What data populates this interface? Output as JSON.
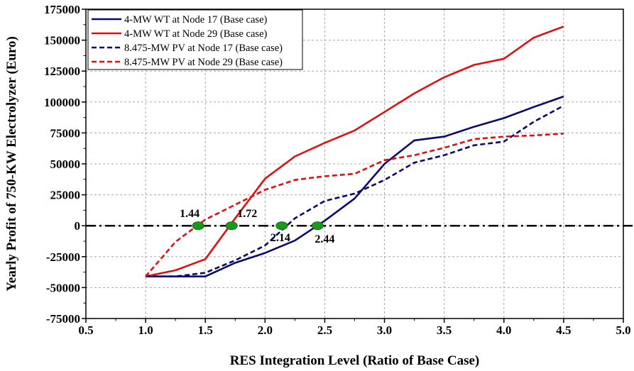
{
  "chart_data": {
    "type": "line",
    "title": "",
    "xlabel": "RES Integration Level (Ratio of Base Case)",
    "ylabel": "Yearly Profit of 750-KW Electrolyzer (Euro)",
    "xlim": [
      0.5,
      5.0
    ],
    "ylim": [
      -75000,
      175000
    ],
    "xticks": [
      "0.5",
      "1.0",
      "1.5",
      "2.0",
      "2.5",
      "3.0",
      "3.5",
      "4.0",
      "4.5",
      "5.0"
    ],
    "yticks": [
      "175000",
      "150000",
      "125000",
      "100000",
      "75000",
      "50000",
      "25000",
      "0",
      "-25000",
      "-50000",
      "-75000"
    ],
    "grid": true,
    "legend_position": "top-left",
    "series": [
      {
        "name": "4-MW WT at Node 17 (Base case)",
        "color": "#0a0a6e",
        "style": "solid",
        "x": [
          1.0,
          1.25,
          1.5,
          1.75,
          2.0,
          2.25,
          2.5,
          2.75,
          3.0,
          3.25,
          3.5,
          3.75,
          4.0,
          4.25,
          4.5
        ],
        "y": [
          -41000,
          -41000,
          -41000,
          -30000,
          -22000,
          -12000,
          4000,
          22000,
          50000,
          69000,
          72000,
          80000,
          87000,
          96000,
          104500
        ]
      },
      {
        "name": "4-MW WT at Node 29 (Base case)",
        "color": "#e01010",
        "style": "solid",
        "x": [
          1.0,
          1.25,
          1.5,
          1.75,
          2.0,
          2.25,
          2.5,
          2.75,
          3.0,
          3.25,
          3.5,
          3.75,
          4.0,
          4.25,
          4.5
        ],
        "y": [
          -41000,
          -36000,
          -27000,
          6000,
          38000,
          56000,
          67000,
          77000,
          92000,
          107000,
          120000,
          130000,
          135000,
          152000,
          161000
        ]
      },
      {
        "name": "8.475-MW PV at Node 17 (Base case)",
        "color": "#0a0a6e",
        "style": "dashed",
        "x": [
          1.0,
          1.25,
          1.5,
          1.75,
          2.0,
          2.25,
          2.5,
          2.75,
          3.0,
          3.25,
          3.5,
          3.75,
          4.0,
          4.25,
          4.5
        ],
        "y": [
          -41000,
          -41000,
          -38000,
          -28000,
          -16000,
          6000,
          20000,
          26000,
          37000,
          51000,
          57000,
          65000,
          68000,
          84000,
          97000
        ]
      },
      {
        "name": "8.475-MW PV at Node 29 (Base case)",
        "color": "#e01010",
        "style": "dashed",
        "x": [
          1.0,
          1.25,
          1.5,
          1.75,
          2.0,
          2.25,
          2.5,
          2.75,
          3.0,
          3.25,
          3.5,
          3.75,
          4.0,
          4.25,
          4.5
        ],
        "y": [
          -41000,
          -13000,
          5000,
          17000,
          29000,
          37000,
          40000,
          42000,
          53000,
          57000,
          63000,
          70000,
          72000,
          73000,
          74500
        ]
      }
    ],
    "reference_line": {
      "y": 0,
      "style": "dash-dot",
      "color": "#000000"
    },
    "markers": [
      {
        "x": 1.44,
        "y": 0,
        "label": "1.44",
        "color": "#1a9a1a"
      },
      {
        "x": 1.72,
        "y": 0,
        "label": "1.72",
        "color": "#1a9a1a"
      },
      {
        "x": 2.14,
        "y": 0,
        "label": "2.14",
        "color": "#1a9a1a"
      },
      {
        "x": 2.44,
        "y": 0,
        "label": "2.44",
        "color": "#1a9a1a"
      }
    ]
  }
}
